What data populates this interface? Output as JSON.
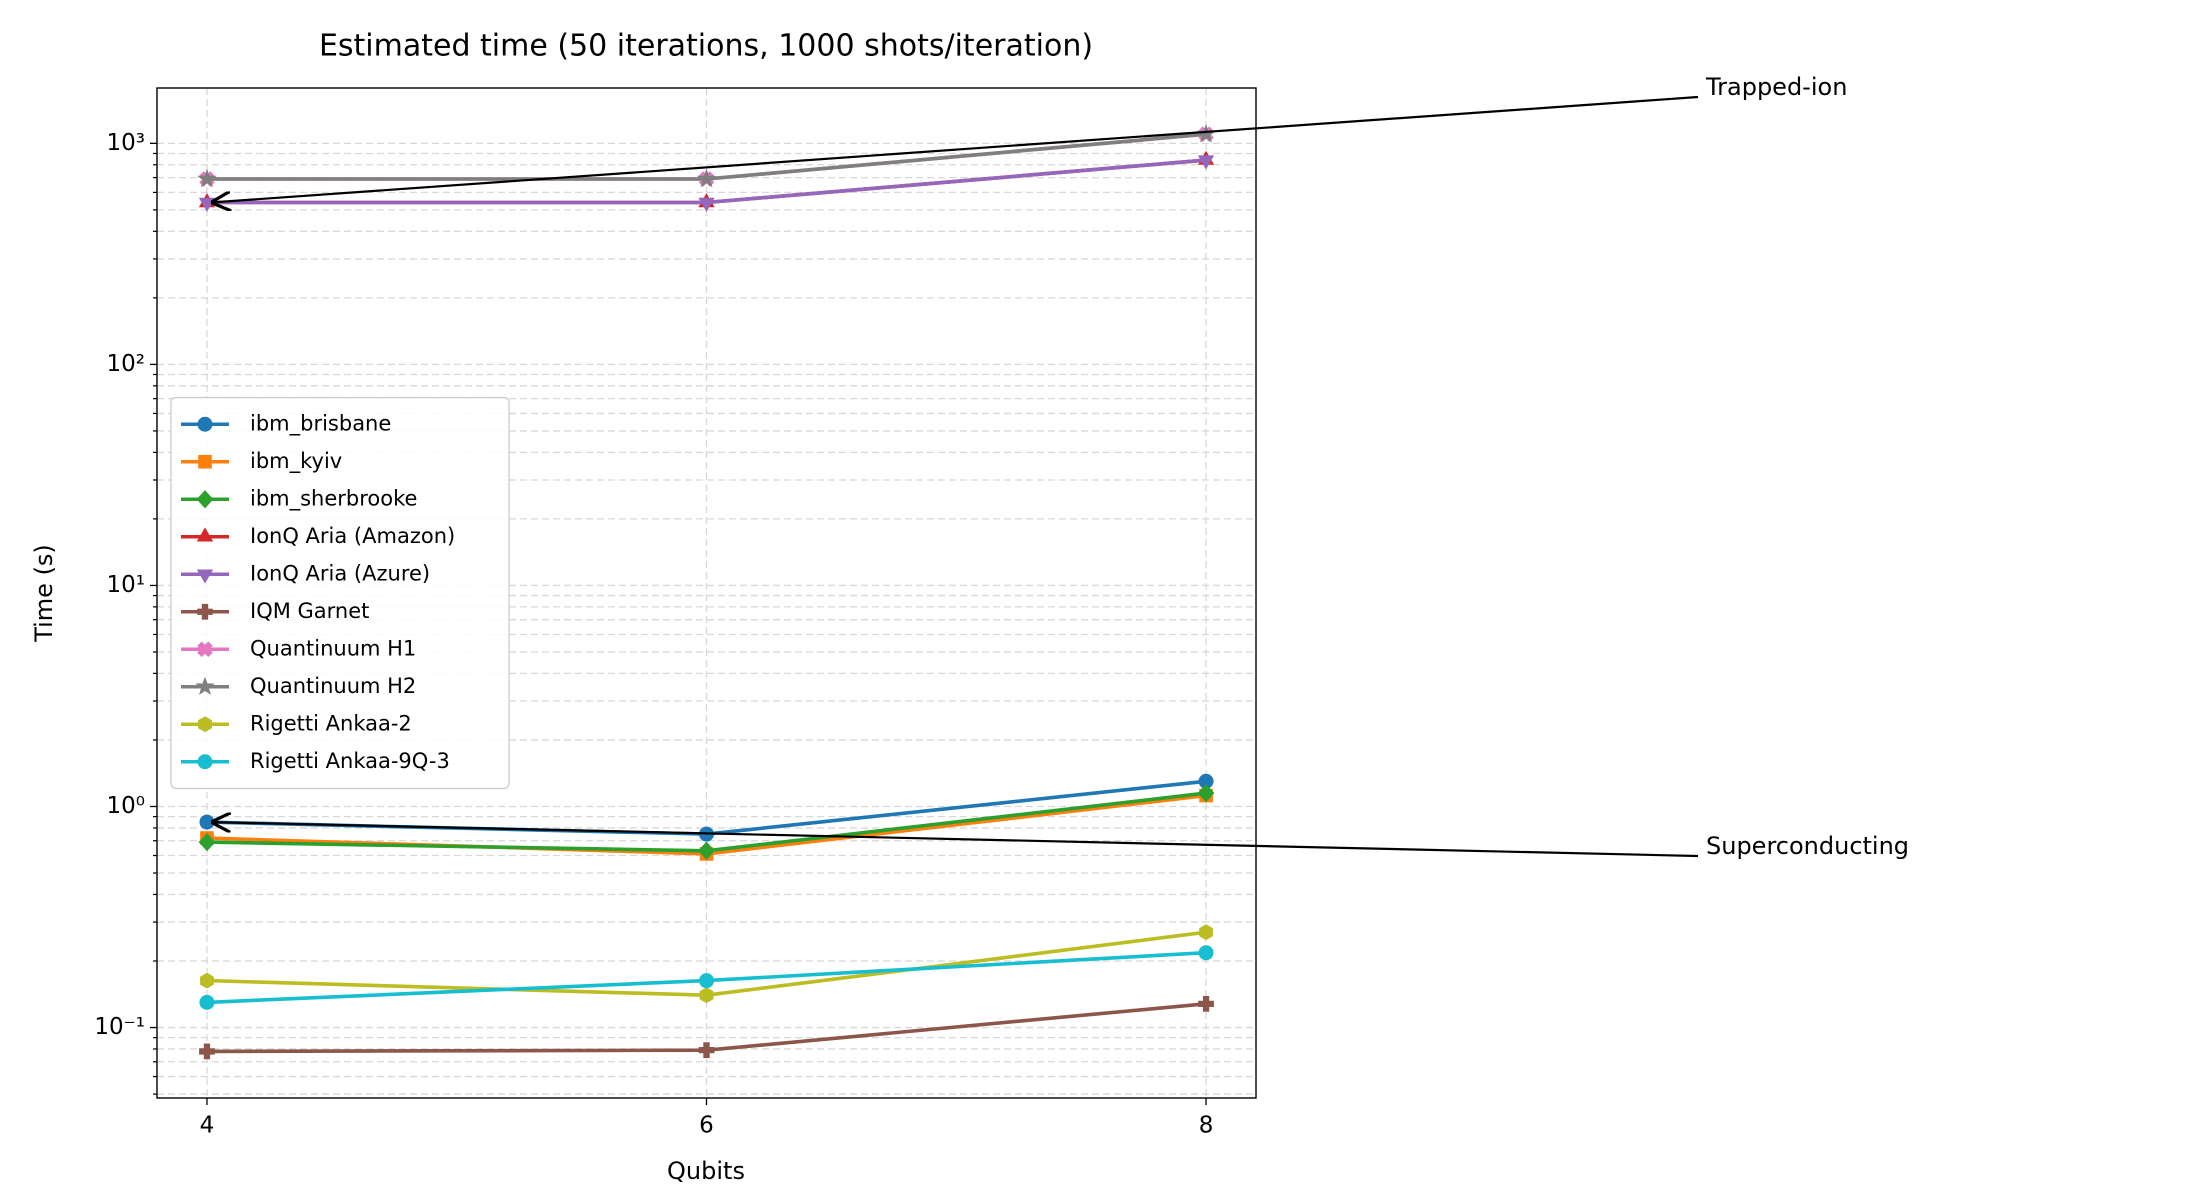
{
  "chart_data": {
    "type": "line",
    "title": "Estimated time (50 iterations, 1000 shots/iteration)",
    "xlabel": "Qubits",
    "ylabel": "Time (s)",
    "x": [
      4,
      6,
      8
    ],
    "xlim": [
      3.8,
      8.2
    ],
    "xticks": [
      4,
      6,
      8
    ],
    "ylim": [
      0.048,
      1780
    ],
    "yscale": "log",
    "yticks": [
      {
        "value": 0.1,
        "label": "10⁻¹"
      },
      {
        "value": 1,
        "label": "10⁰"
      },
      {
        "value": 10,
        "label": "10¹"
      },
      {
        "value": 100,
        "label": "10²"
      },
      {
        "value": 1000,
        "label": "10³"
      }
    ],
    "yminorticks": [
      0.05,
      0.06,
      0.07,
      0.08,
      0.09,
      0.2,
      0.3,
      0.4,
      0.5,
      0.6,
      0.7,
      0.8,
      0.9,
      2,
      3,
      4,
      5,
      6,
      7,
      8,
      9,
      20,
      30,
      40,
      50,
      60,
      70,
      80,
      90,
      200,
      300,
      400,
      500,
      600,
      700,
      800,
      900
    ],
    "grid": true,
    "legend": "center left",
    "series": [
      {
        "name": "ibm_brisbane",
        "color": "#1f77b4",
        "marker": "circle",
        "values": [
          0.85,
          0.75,
          1.3
        ]
      },
      {
        "name": "ibm_kyiv",
        "color": "#ff7f0e",
        "marker": "square",
        "values": [
          0.72,
          0.61,
          1.12
        ]
      },
      {
        "name": "ibm_sherbrooke",
        "color": "#2ca02c",
        "marker": "diamond",
        "values": [
          0.69,
          0.63,
          1.15
        ]
      },
      {
        "name": "IonQ Aria (Amazon)",
        "color": "#d62728",
        "marker": "triangle-up",
        "values": [
          540,
          540,
          840
        ]
      },
      {
        "name": "IonQ Aria (Azure)",
        "color": "#9467bd",
        "marker": "triangle-down",
        "values": [
          540,
          540,
          840
        ]
      },
      {
        "name": "IQM Garnet",
        "color": "#8c564b",
        "marker": "plus",
        "values": [
          0.078,
          0.079,
          0.128
        ]
      },
      {
        "name": "Quantinuum H1",
        "color": "#e377c2",
        "marker": "x",
        "values": [
          690,
          690,
          1100
        ]
      },
      {
        "name": "Quantinuum H2",
        "color": "#7f7f7f",
        "marker": "star",
        "values": [
          690,
          690,
          1100
        ]
      },
      {
        "name": "Rigetti Ankaa-2",
        "color": "#bcbd22",
        "marker": "hexagon",
        "values": [
          0.163,
          0.14,
          0.27
        ]
      },
      {
        "name": "Rigetti Ankaa-9Q-3",
        "color": "#17becf",
        "marker": "circle",
        "values": [
          0.13,
          0.163,
          0.218
        ]
      }
    ],
    "annotations": [
      {
        "text": "Trapped-ion",
        "x": 4,
        "y": 540
      },
      {
        "text": "Superconducting",
        "x": 4,
        "y": 0.85
      }
    ]
  }
}
